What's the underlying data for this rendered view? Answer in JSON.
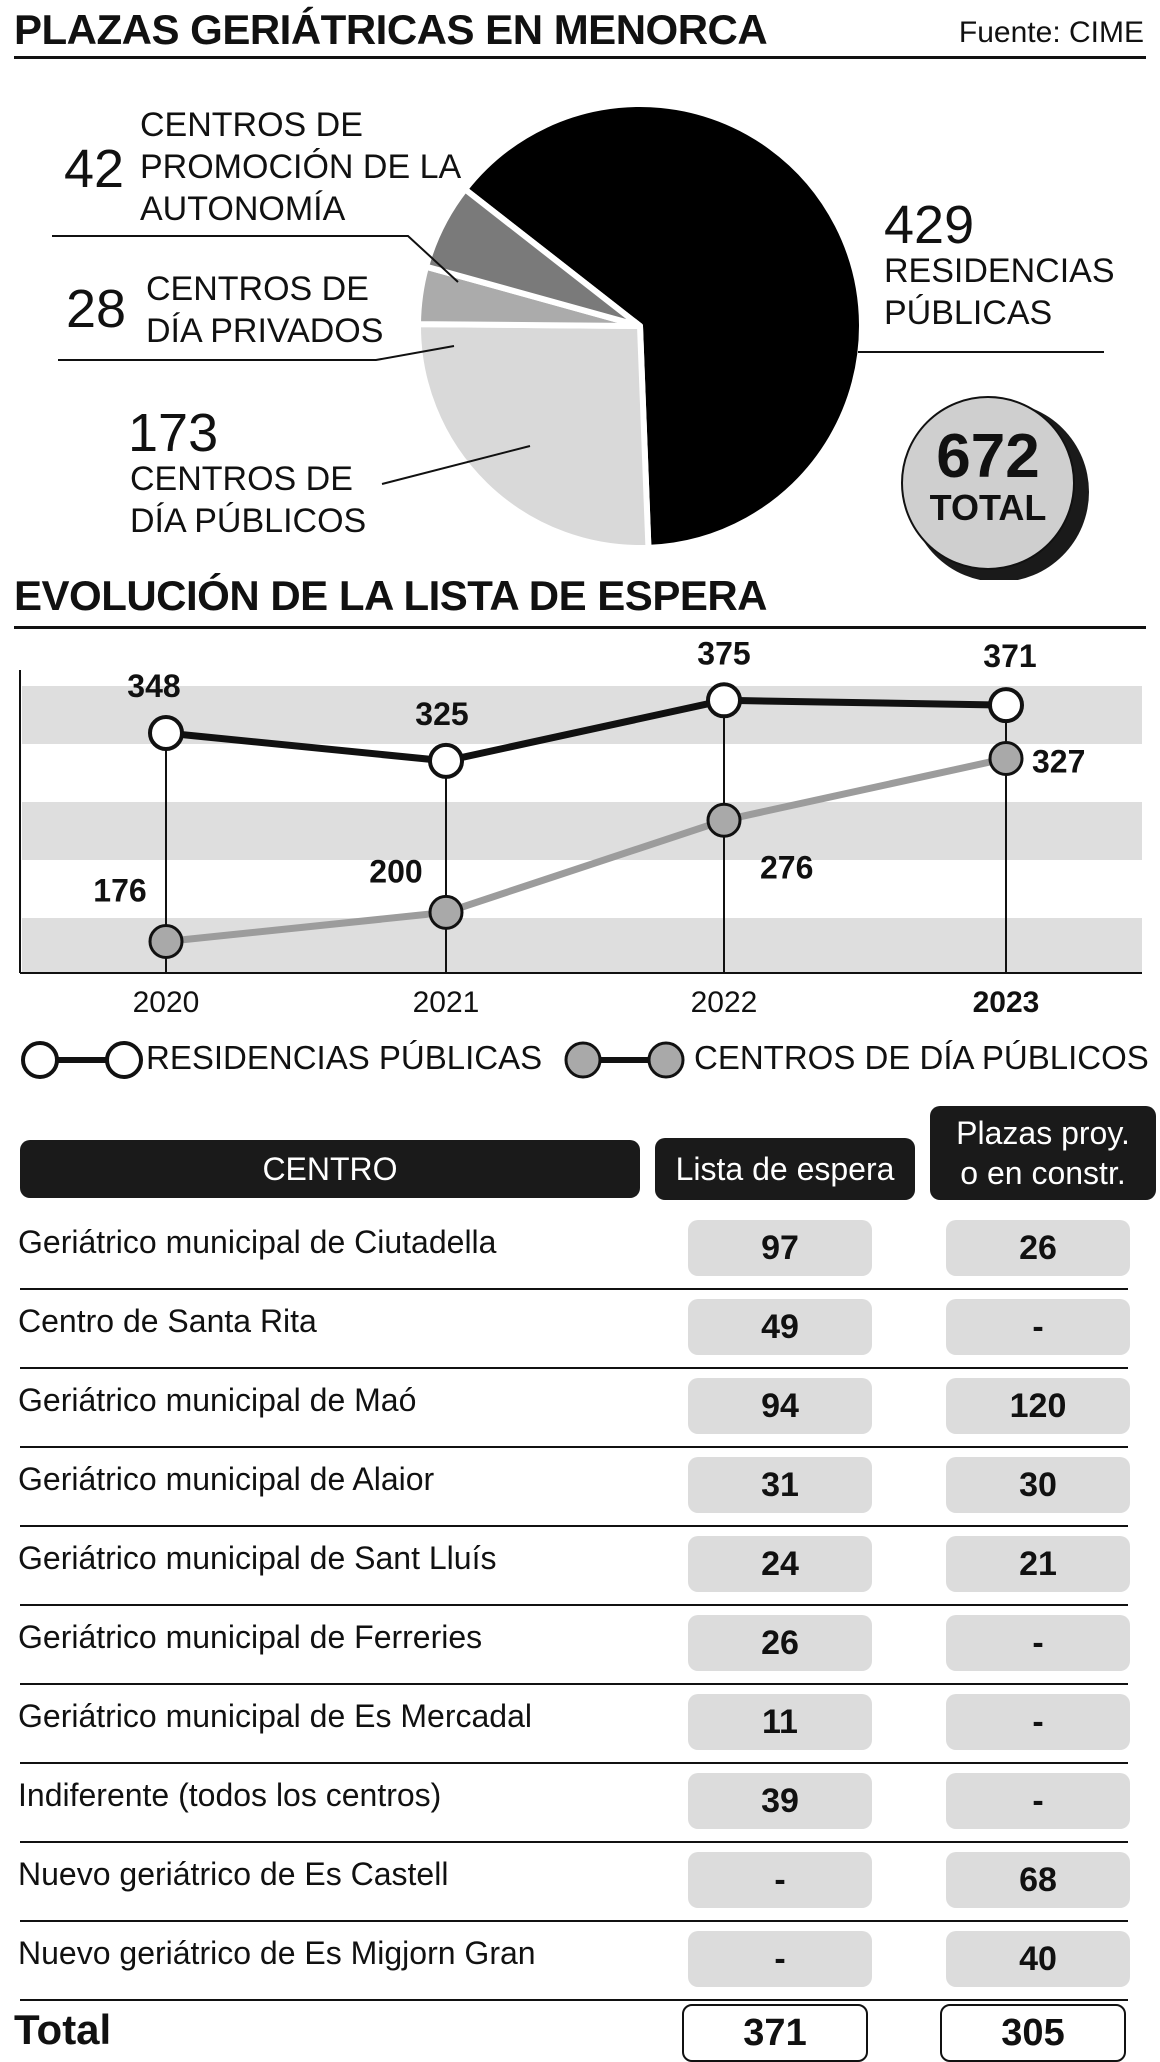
{
  "source": "Fuente: CIME",
  "pie": {
    "title": "PLAZAS GERIÁTRICAS EN MENORCA",
    "total_value": "672",
    "total_label": "TOTAL"
  },
  "chart_data": [
    {
      "type": "pie",
      "title": "PLAZAS GERIÁTRICAS EN MENORCA",
      "slices": [
        {
          "label": "RESIDENCIAS PÚBLICAS",
          "value": 429,
          "color": "#000000"
        },
        {
          "label": "CENTROS DE DÍA PÚBLICOS",
          "value": 173,
          "color": "#d9d9d9"
        },
        {
          "label": "CENTROS DE DÍA PRIVADOS",
          "value": 28,
          "color": "#ababab"
        },
        {
          "label": "CENTROS DE PROMOCIÓN DE LA AUTONOMÍA",
          "value": 42,
          "color": "#7a7a7a"
        }
      ],
      "total": 672
    },
    {
      "type": "line",
      "title": "EVOLUCIÓN DE LA LISTA DE ESPERA",
      "categories": [
        "2020",
        "2021",
        "2022",
        "2023"
      ],
      "series": [
        {
          "name": "RESIDENCIAS PÚBLICAS",
          "values": [
            348,
            325,
            375,
            371
          ],
          "color": "#000000"
        },
        {
          "name": "CENTROS DE DÍA PÚBLICOS",
          "values": [
            176,
            200,
            276,
            327
          ],
          "color": "#999999"
        }
      ],
      "ylim": [
        150,
        400
      ],
      "legend": "bottom"
    },
    {
      "type": "table",
      "columns": [
        "CENTRO",
        "Lista de espera",
        "Plazas proy. o en constr."
      ],
      "rows": [
        [
          "Geriátrico municipal de Ciutadella",
          "97",
          "26"
        ],
        [
          "Centro de Santa Rita",
          "49",
          "-"
        ],
        [
          "Geriátrico municipal de Maó",
          "94",
          "120"
        ],
        [
          "Geriátrico municipal de Alaior",
          "31",
          "30"
        ],
        [
          "Geriátrico municipal de Sant Lluís",
          "24",
          "21"
        ],
        [
          "Geriátrico municipal de Ferreries",
          "26",
          "-"
        ],
        [
          "Geriátrico municipal de Es Mercadal",
          "11",
          "-"
        ],
        [
          "Indiferente (todos los centros)",
          "39",
          "-"
        ],
        [
          "Nuevo geriátrico de Es Castell",
          "-",
          "68"
        ],
        [
          "Nuevo geriátrico de Es Migjorn Gran",
          "-",
          "40"
        ]
      ],
      "total_label": "Total",
      "totals": [
        "371",
        "305"
      ]
    }
  ],
  "line": {
    "title": "EVOLUCIÓN DE LA LISTA DE ESPERA"
  },
  "table": {
    "header_centro": "CENTRO",
    "header_lista_line1": "Lista de espera",
    "header_plazas_line1": "Plazas proy.",
    "header_plazas_line2": "o en constr."
  }
}
